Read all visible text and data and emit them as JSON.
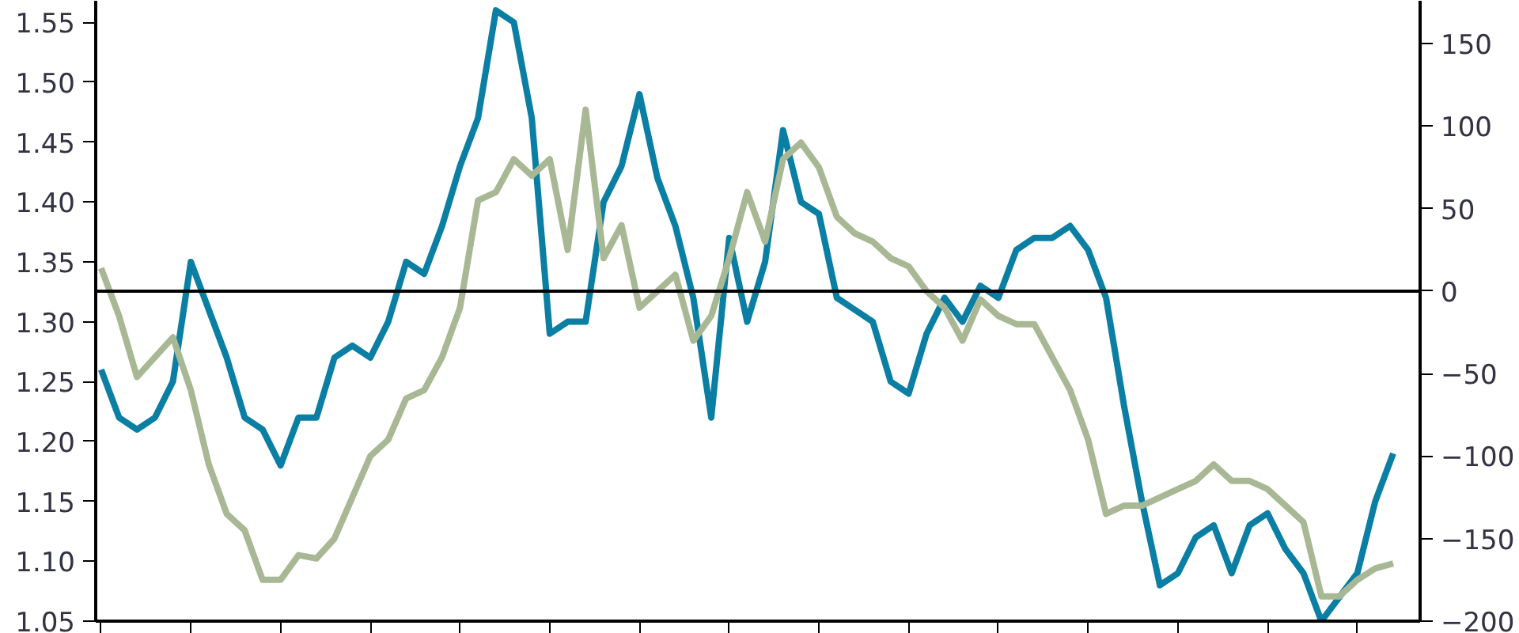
{
  "chart_data": {
    "type": "line",
    "categories": [
      null,
      null,
      null,
      null,
      null,
      null,
      null,
      null,
      null,
      null,
      null,
      null,
      null,
      null,
      null,
      null,
      null,
      null,
      null,
      null,
      null,
      null,
      null,
      null,
      null,
      null,
      null,
      null,
      null,
      null,
      null,
      null,
      null,
      null,
      null,
      null,
      null,
      null,
      null,
      null,
      null,
      null,
      null,
      null,
      null,
      null,
      null,
      null,
      null,
      null,
      null,
      null,
      null,
      null,
      null,
      null,
      null,
      null,
      null,
      null,
      null,
      null,
      null,
      null,
      null,
      null,
      null,
      null,
      null,
      null,
      null,
      null,
      null
    ],
    "series": [
      {
        "color": "#0a7fa3",
        "values": [
          1.26,
          1.22,
          1.21,
          1.22,
          1.25,
          1.35,
          1.31,
          1.27,
          1.22,
          1.21,
          1.18,
          1.22,
          1.22,
          1.27,
          1.28,
          1.27,
          1.3,
          1.35,
          1.34,
          1.38,
          1.43,
          1.47,
          1.56,
          1.55,
          1.47,
          1.29,
          1.3,
          1.3,
          1.4,
          1.43,
          1.49,
          1.42,
          1.38,
          1.32,
          1.22,
          1.37,
          1.3,
          1.35,
          1.46,
          1.4,
          1.39,
          1.32,
          1.31,
          1.3,
          1.25,
          1.24,
          1.29,
          1.32,
          1.3,
          1.33,
          1.32,
          1.36,
          1.37,
          1.37,
          1.38,
          1.36,
          1.32,
          1.23,
          1.15,
          1.08,
          1.09,
          1.12,
          1.13,
          1.09,
          1.13,
          1.14,
          1.11,
          1.09,
          1.05,
          1.07,
          1.09,
          1.15,
          1.19
        ]
      },
      {
        "color": "#a8b894",
        "axis": "y2",
        "values": [
          14,
          -15,
          -52,
          -40,
          -28,
          -60,
          -105,
          -135,
          -145,
          -175,
          -175,
          -160,
          -162,
          -150,
          -125,
          -100,
          -90,
          -65,
          -60,
          -40,
          -10,
          55,
          60,
          80,
          70,
          80,
          25,
          110,
          20,
          40,
          -10,
          0,
          10,
          -30,
          -15,
          20,
          60,
          30,
          80,
          90,
          75,
          45,
          35,
          30,
          20,
          15,
          0,
          -10,
          -30,
          -5,
          -15,
          -20,
          -20,
          -40,
          -60,
          -90,
          -135,
          -130,
          -130,
          -125,
          -120,
          -115,
          -105,
          -115,
          -115,
          -120,
          -130,
          -140,
          -185,
          -185,
          -175,
          -168,
          -165
        ]
      }
    ],
    "ylim": [
      1.05,
      1.568
    ],
    "yticks": [
      {
        "value": 1.05,
        "label": "1.05"
      },
      {
        "value": 1.1,
        "label": "1.10"
      },
      {
        "value": 1.15,
        "label": "1.15"
      },
      {
        "value": 1.2,
        "label": "1.20"
      },
      {
        "value": 1.25,
        "label": "1.25"
      },
      {
        "value": 1.3,
        "label": "1.30"
      },
      {
        "value": 1.35,
        "label": "1.35"
      },
      {
        "value": 1.4,
        "label": "1.40"
      },
      {
        "value": 1.45,
        "label": "1.45"
      },
      {
        "value": 1.5,
        "label": "1.50"
      },
      {
        "value": 1.55,
        "label": "1.55"
      }
    ],
    "y2lim": [
      -200,
      176
    ],
    "y2ticks": [
      -200,
      -150,
      -100,
      -50,
      0,
      50,
      100,
      150
    ],
    "ref_lines": [
      {
        "axis": "y2",
        "value": 0,
        "color": "#000000"
      }
    ],
    "line_style": "solid",
    "marker": "none",
    "grid": false
  }
}
